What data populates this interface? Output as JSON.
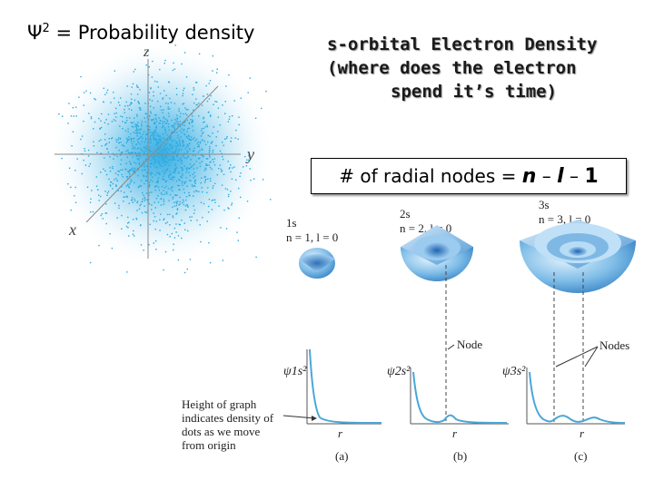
{
  "top_left": {
    "psi_symbol": "Ψ",
    "psi_power": "2",
    "psi_rest": " = Probability density"
  },
  "title": {
    "line1": "s-orbital Electron Density",
    "line2": "(where does the electron",
    "line3": "spend it’s time)"
  },
  "nodes_box": {
    "prefix": "# of radial nodes = ",
    "n": "n",
    "minus1": " – ",
    "l": "l",
    "minus2": " – ",
    "one": "1"
  },
  "cloud_axes": {
    "z": "z",
    "y": "y",
    "x": "x"
  },
  "orbitals": [
    {
      "name": "1s",
      "quantum": "n = 1, l = 0",
      "psi_label": "ψ1s²",
      "panel": "(a)"
    },
    {
      "name": "2s",
      "quantum": "n = 2, l = 0",
      "psi_label": "ψ2s²",
      "panel": "(b)"
    },
    {
      "name": "3s",
      "quantum": "n = 3, l = 0",
      "psi_label": "ψ3s²",
      "panel": "(c)"
    }
  ],
  "graph_r_label": "r",
  "node_label": "Node",
  "nodes_label": "Nodes",
  "height_note": [
    "Height of graph",
    "indicates density of",
    "dots as we move",
    "from origin"
  ],
  "colors": {
    "cloud": "#2aa9e0",
    "sphere_dark": "#3d8fd0",
    "sphere_light": "#cfe8fa",
    "curve": "#4aa6d8"
  }
}
